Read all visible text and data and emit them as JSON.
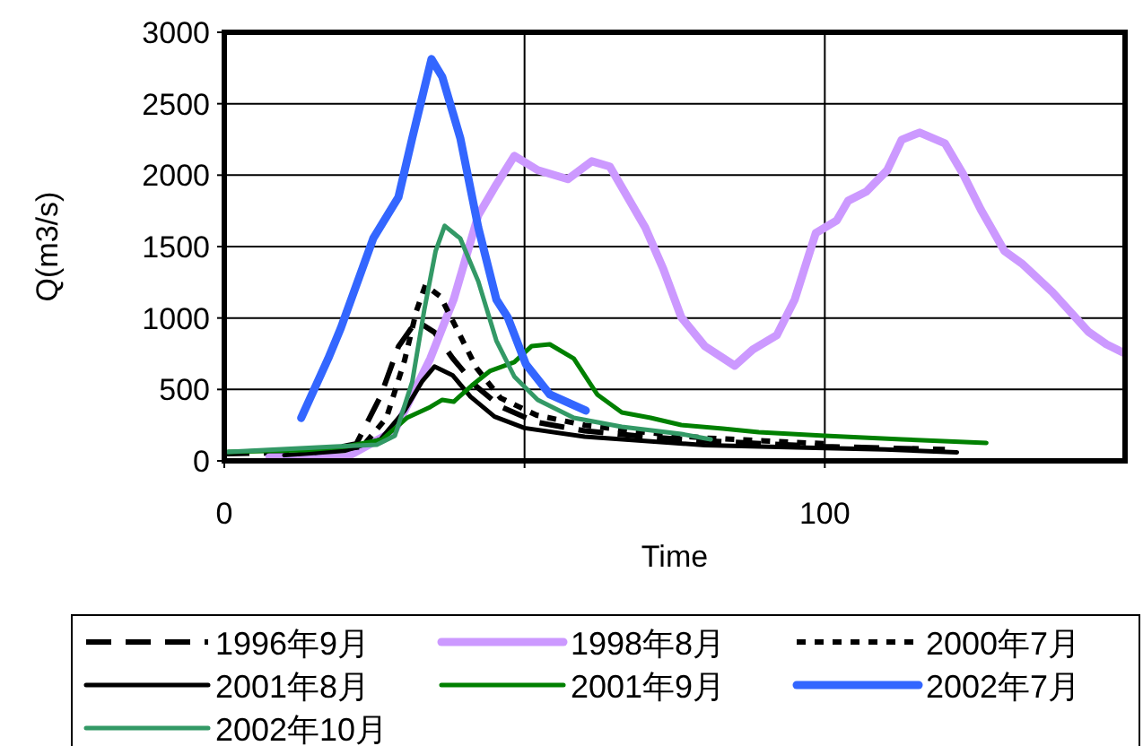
{
  "chart_data": {
    "type": "line",
    "xlabel": "Time",
    "ylabel": "Q(m3/s)",
    "xlim": [
      0,
      150
    ],
    "xticks": [
      0,
      {
        "value": 50,
        "label": null
      },
      100
    ],
    "ylim": [
      0,
      3000
    ],
    "yticks": [
      0,
      500,
      1000,
      1500,
      2000,
      2500,
      3000
    ],
    "grid": true,
    "legend": "bottom",
    "marker": "none",
    "series": [
      {
        "name": "1996年9月",
        "color": "#000000",
        "line_style": "dashed",
        "x": [
          0,
          15,
          22,
          26,
          29,
          32,
          35,
          38,
          42,
          46,
          52,
          60,
          70,
          80,
          90,
          100,
          110,
          120
        ],
        "values": [
          50,
          60,
          120,
          450,
          800,
          980,
          900,
          720,
          520,
          380,
          270,
          210,
          170,
          140,
          120,
          100,
          90,
          80
        ]
      },
      {
        "name": "1998年8月",
        "color": "#cc99ff",
        "line_style": "solid",
        "x": [
          7.5,
          20.3,
          28.4,
          34.3,
          38.2,
          42.3,
          45.3,
          48.3,
          52.2,
          57.2,
          61.2,
          64.2,
          70.1,
          73.1,
          76.1,
          80,
          85,
          88,
          92,
          95,
          98.5,
          102,
          103.9,
          106.9,
          110.4,
          112.8,
          115.8,
          120,
          123,
          126,
          129.9,
          132.8,
          137.9,
          143.9,
          146.9,
          149.9
        ],
        "values": [
          25,
          25,
          213,
          716,
          1130,
          1720,
          1934,
          2135,
          2035,
          1972,
          2097,
          2060,
          1633,
          1344,
          1005,
          804,
          666,
          779,
          879,
          1130,
          1595,
          1683,
          1821,
          1884,
          2035,
          2248,
          2298,
          2223,
          2010,
          1758,
          1470,
          1382,
          1181,
          904,
          816,
          754
        ]
      },
      {
        "name": "2000年7月",
        "color": "#000000",
        "line_style": "dotted",
        "x": [
          15,
          23,
          27,
          30,
          32,
          33.5,
          36,
          39,
          42,
          46,
          52,
          60,
          70,
          80,
          90,
          100
        ],
        "values": [
          60,
          100,
          300,
          700,
          1050,
          1230,
          1150,
          900,
          650,
          440,
          320,
          250,
          200,
          160,
          140,
          120
        ]
      },
      {
        "name": "2001年8月",
        "color": "#000000",
        "line_style": "solid",
        "x": [
          10,
          20,
          26,
          30,
          33,
          35,
          38,
          41,
          45,
          50,
          60,
          70,
          80,
          100,
          110,
          122
        ],
        "values": [
          40,
          70,
          150,
          350,
          560,
          660,
          600,
          450,
          310,
          230,
          170,
          140,
          110,
          90,
          80,
          60
        ]
      },
      {
        "name": "2001年9月",
        "color": "#008000",
        "line_style": "solid",
        "x": [
          0.6,
          13.4,
          20.3,
          26.3,
          30.4,
          34.3,
          36.3,
          38.2,
          41.2,
          44.2,
          48.3,
          51.2,
          54.2,
          58.2,
          62.1,
          66.2,
          71,
          76.1,
          83,
          89,
          100,
          112.8,
          126.9
        ],
        "values": [
          63,
          75,
          100,
          150,
          301,
          377,
          427,
          414,
          527,
          628,
          691,
          804,
          816,
          716,
          465,
          339,
          301,
          251,
          226,
          201,
          176,
          151,
          126
        ]
      },
      {
        "name": "2002年7月",
        "color": "#3366ff",
        "line_style": "solid",
        "x": [
          12.8,
          17.3,
          19.4,
          24.8,
          29,
          31.3,
          34.5,
          36.3,
          39.3,
          42.3,
          45.3,
          47.2,
          50.2,
          54.2,
          60.2
        ],
        "values": [
          300,
          716,
          929,
          1557,
          1846,
          2260,
          2813,
          2688,
          2260,
          1633,
          1130,
          1005,
          678,
          465,
          352
        ]
      },
      {
        "name": "2002年10月",
        "color": "#339966",
        "line_style": "solid",
        "x": [
          0.6,
          18.5,
          25.4,
          28.4,
          31.3,
          33.3,
          35.2,
          36.7,
          39.3,
          42.3,
          45.3,
          48.3,
          52.2,
          58.2,
          66.2,
          76.1,
          81
        ],
        "values": [
          63,
          100,
          113,
          176,
          553,
          1055,
          1470,
          1645,
          1557,
          1256,
          842,
          590,
          427,
          301,
          239,
          188,
          151
        ]
      }
    ]
  }
}
